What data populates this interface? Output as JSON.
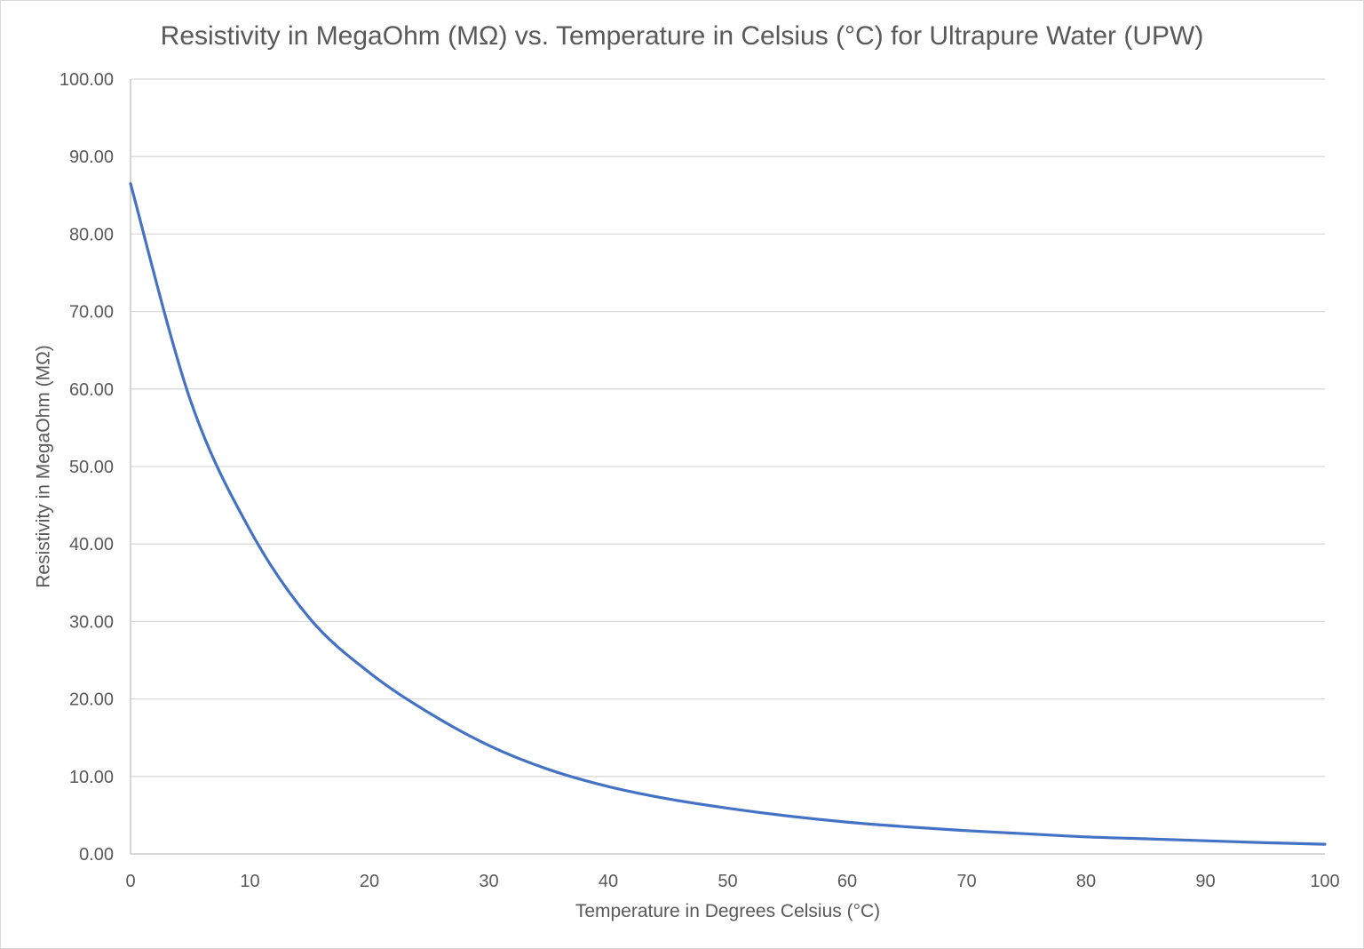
{
  "chart_data": {
    "type": "line",
    "title": "Resistivity in MegaOhm (MΩ) vs. Temperature in Celsius (°C) for Ultrapure Water (UPW)",
    "xlabel": "Temperature in Degrees Celsius (°C)",
    "ylabel": "Resistivity in MegaOhm (MΩ)",
    "xlim": [
      0,
      100
    ],
    "ylim": [
      0,
      100
    ],
    "x_ticks": [
      "0",
      "10",
      "20",
      "30",
      "40",
      "50",
      "60",
      "70",
      "80",
      "90",
      "100"
    ],
    "y_ticks": [
      "0.00",
      "10.00",
      "20.00",
      "30.00",
      "40.00",
      "50.00",
      "60.00",
      "70.00",
      "80.00",
      "90.00",
      "100.00"
    ],
    "grid": true,
    "series": [
      {
        "color": "#4472C4",
        "x": [
          0,
          5,
          10,
          15,
          20,
          25,
          30,
          35,
          40,
          45,
          50,
          55,
          60,
          65,
          70,
          75,
          80,
          85,
          90,
          95,
          100
        ],
        "y": [
          86.5,
          58.6,
          41.8,
          30.4,
          23.4,
          18.2,
          14.0,
          10.9,
          8.7,
          7.1,
          5.9,
          4.9,
          4.1,
          3.5,
          3.0,
          2.6,
          2.2,
          1.95,
          1.7,
          1.45,
          1.25
        ]
      }
    ]
  }
}
